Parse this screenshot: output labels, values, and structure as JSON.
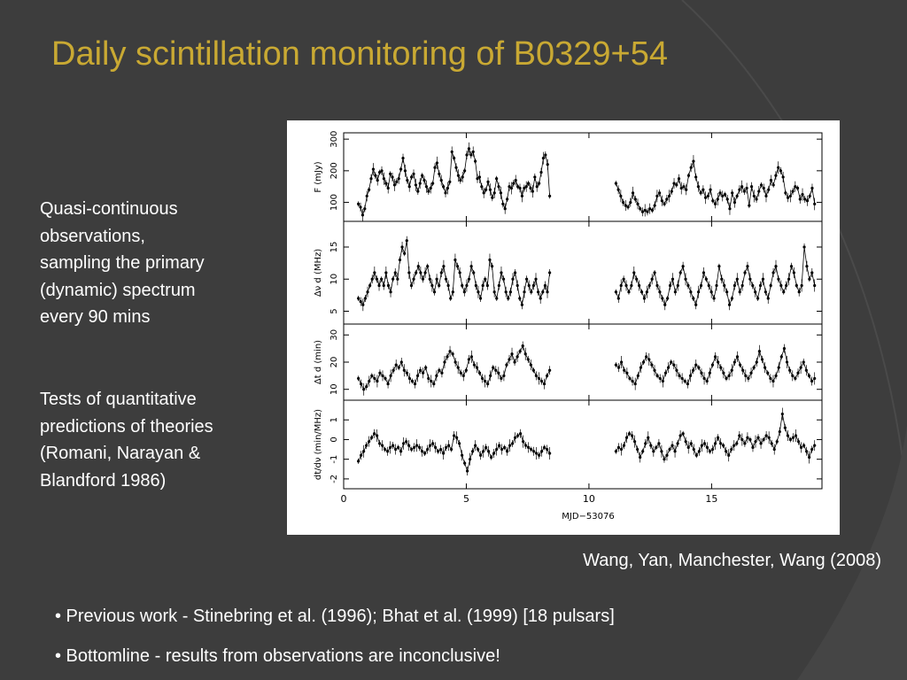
{
  "slide": {
    "title": "Daily scintillation monitoring of B0329+54",
    "side_text_1_lines": [
      "Quasi-continuous",
      "observations,",
      "sampling the primary",
      "(dynamic) spectrum",
      "every 90 mins"
    ],
    "side_text_2_lines": [
      "Tests of quantitative",
      "predictions of theories",
      "(Romani, Narayan &",
      "Blandford 1986)"
    ],
    "citation": "Wang, Yan, Manchester, Wang (2008)",
    "bullets": [
      "• Previous work - Stinebring et al. (1996); Bhat et al. (1999) [18 pulsars]",
      "• Bottomline - results from observations are inconclusive!"
    ],
    "colors": {
      "background": "#3d3d3d",
      "title": "#c9a933",
      "text": "#ffffff"
    }
  },
  "chart_data": {
    "type": "scatter",
    "xlabel": "MJD−53076",
    "xlim": [
      0,
      19.5
    ],
    "xticks": [
      0,
      5,
      10,
      15
    ],
    "panels": [
      {
        "ylabel": "F (mJy)",
        "yticks": [
          100,
          200,
          300
        ],
        "ylim": [
          40,
          320
        ],
        "segment1": [
          95,
          85,
          60,
          80,
          120,
          140,
          175,
          205,
          185,
          170,
          195,
          200,
          175,
          160,
          145,
          190,
          180,
          155,
          165,
          175,
          205,
          240,
          200,
          170,
          150,
          180,
          190,
          155,
          135,
          160,
          185,
          170,
          150,
          135,
          145,
          160,
          210,
          225,
          190,
          170,
          150,
          130,
          145,
          165,
          260,
          240,
          210,
          185,
          170,
          180,
          200,
          250,
          270,
          250,
          260,
          230,
          175,
          180,
          150,
          130,
          140,
          165,
          140,
          115,
          130,
          175,
          150,
          130,
          95,
          80,
          110,
          150,
          145,
          160,
          170,
          150,
          145,
          120,
          145,
          150,
          160,
          145,
          135,
          180,
          150,
          160,
          195,
          240,
          250,
          220,
          120
        ],
        "segment2": [
          160,
          140,
          120,
          100,
          90,
          85,
          100,
          130,
          110,
          95,
          80,
          70,
          75,
          70,
          80,
          75,
          90,
          120,
          130,
          105,
          95,
          110,
          120,
          135,
          160,
          155,
          175,
          145,
          150,
          140,
          185,
          210,
          230,
          180,
          150,
          130,
          140,
          115,
          120,
          140,
          105,
          95,
          110,
          130,
          120,
          125,
          110,
          80,
          130,
          100,
          120,
          140,
          150,
          135,
          145,
          90,
          150,
          120,
          110,
          135,
          155,
          145,
          120,
          140,
          170,
          155,
          185,
          210,
          200,
          180,
          130,
          115,
          120,
          135,
          150,
          145,
          110,
          125,
          110,
          105,
          120,
          145,
          95
        ]
      },
      {
        "ylabel": "Δν d (MHz)",
        "yticks": [
          5,
          10,
          15
        ],
        "ylim": [
          3,
          19
        ],
        "segment1": [
          7,
          6.5,
          6,
          7,
          8,
          9,
          10,
          11,
          10,
          9,
          10,
          9,
          11,
          9,
          8,
          10,
          11,
          10,
          13,
          15,
          14,
          16,
          11,
          9,
          10,
          11,
          12,
          11,
          10,
          11,
          12,
          10,
          9,
          8,
          10,
          9,
          11,
          12,
          10,
          9,
          7,
          8,
          13,
          12,
          11,
          9,
          8,
          9,
          10,
          12,
          11,
          9,
          8,
          7,
          9,
          10,
          9,
          13,
          12,
          8,
          7,
          9,
          11,
          10,
          8,
          7,
          8,
          10,
          11,
          9,
          7,
          6,
          8,
          10,
          9,
          8,
          9,
          10,
          8,
          7,
          8,
          9,
          8,
          11
        ],
        "segment2": [
          8,
          7,
          9,
          10,
          9,
          8,
          9,
          11,
          10,
          9,
          8,
          7,
          8,
          9,
          10,
          11,
          9,
          8,
          7,
          6,
          7,
          9,
          10,
          8,
          9,
          11,
          12,
          10,
          9,
          8,
          7,
          6,
          8,
          9,
          11,
          10,
          9,
          8,
          7,
          9,
          12,
          10,
          9,
          8,
          6,
          7,
          9,
          10,
          8,
          9,
          11,
          12,
          10,
          9,
          8,
          7,
          9,
          10,
          8,
          7,
          9,
          11,
          12,
          10,
          9,
          8,
          9,
          10,
          12,
          11,
          9,
          8,
          9,
          15,
          12,
          10,
          11,
          9
        ]
      },
      {
        "ylabel": "Δt d (min)",
        "yticks": [
          10,
          20,
          30
        ],
        "ylim": [
          6,
          34
        ],
        "segment1": [
          14,
          12,
          10,
          11,
          13,
          15,
          14,
          13,
          16,
          15,
          14,
          12,
          15,
          17,
          19,
          18,
          20,
          17,
          16,
          14,
          13,
          12,
          15,
          17,
          16,
          18,
          14,
          13,
          12,
          15,
          17,
          16,
          20,
          22,
          24,
          23,
          20,
          18,
          16,
          15,
          17,
          21,
          22,
          19,
          18,
          16,
          14,
          13,
          12,
          15,
          18,
          17,
          16,
          14,
          15,
          19,
          21,
          23,
          20,
          22,
          24,
          26,
          23,
          21,
          19,
          17,
          15,
          14,
          13,
          12,
          15,
          17
        ],
        "segment2": [
          19,
          18,
          20,
          17,
          16,
          14,
          13,
          12,
          15,
          18,
          20,
          22,
          21,
          19,
          17,
          15,
          14,
          13,
          16,
          18,
          20,
          19,
          17,
          15,
          14,
          13,
          12,
          15,
          17,
          19,
          18,
          16,
          14,
          13,
          16,
          19,
          22,
          20,
          18,
          16,
          14,
          15,
          17,
          20,
          22,
          19,
          17,
          15,
          14,
          16,
          18,
          20,
          24,
          21,
          18,
          16,
          14,
          13,
          15,
          18,
          22,
          25,
          20,
          17,
          15,
          14,
          16,
          18,
          20,
          17,
          15,
          13,
          14
        ]
      },
      {
        "ylabel": "dt/dν (min/MHz)",
        "yticks": [
          -2,
          -1,
          0,
          1
        ],
        "ylim": [
          -2.5,
          2
        ],
        "segment1": [
          -1.1,
          -0.8,
          -0.6,
          -0.3,
          -0.1,
          0.1,
          0.3,
          0.2,
          -0.2,
          -0.3,
          -0.5,
          -0.6,
          -0.4,
          -0.3,
          -0.5,
          -0.4,
          -0.6,
          -0.2,
          -0.1,
          -0.3,
          -0.5,
          -0.4,
          -0.3,
          -0.4,
          -0.6,
          -0.7,
          -0.5,
          -0.3,
          -0.2,
          -0.4,
          -0.6,
          -0.5,
          -0.7,
          -0.4,
          -0.3,
          -0.5,
          0.2,
          0.1,
          -0.2,
          -0.8,
          -1.2,
          -1.6,
          -1.0,
          -0.6,
          -0.3,
          -0.5,
          -0.8,
          -0.6,
          -0.4,
          -0.6,
          -0.9,
          -0.7,
          -0.5,
          -0.3,
          -0.5,
          -0.4,
          -0.6,
          -0.3,
          -0.2,
          0.1,
          0.2,
          0.3,
          -0.1,
          -0.3,
          -0.4,
          -0.5,
          -0.6,
          -0.7,
          -0.8,
          -0.6,
          -0.4,
          -0.5,
          -0.7
        ],
        "segment2": [
          -0.6,
          -0.4,
          -0.5,
          -0.3,
          0.1,
          0.3,
          0.2,
          -0.1,
          -0.5,
          -0.9,
          -0.6,
          -0.2,
          0.1,
          -0.3,
          -0.6,
          -0.4,
          -0.2,
          -0.6,
          -1.0,
          -0.8,
          -0.5,
          -0.3,
          -0.6,
          -0.2,
          0.2,
          0.3,
          -0.1,
          -0.4,
          -0.2,
          -0.5,
          -0.8,
          -0.6,
          -0.3,
          -0.2,
          -0.4,
          -0.6,
          -0.5,
          -0.2,
          0.1,
          -0.2,
          -0.3,
          -0.6,
          -0.8,
          -0.5,
          -0.3,
          -0.2,
          0.2,
          0.0,
          -0.2,
          0.1,
          0.0,
          -0.4,
          -0.1,
          0.1,
          -0.2,
          0.0,
          0.2,
          0.1,
          -0.2,
          -0.5,
          -0.1,
          0.4,
          1.3,
          0.6,
          0.2,
          0.0,
          0.1,
          0.2,
          -0.1,
          -0.4,
          -0.3,
          -0.6,
          -0.9,
          -0.5,
          -0.3
        ]
      }
    ]
  }
}
